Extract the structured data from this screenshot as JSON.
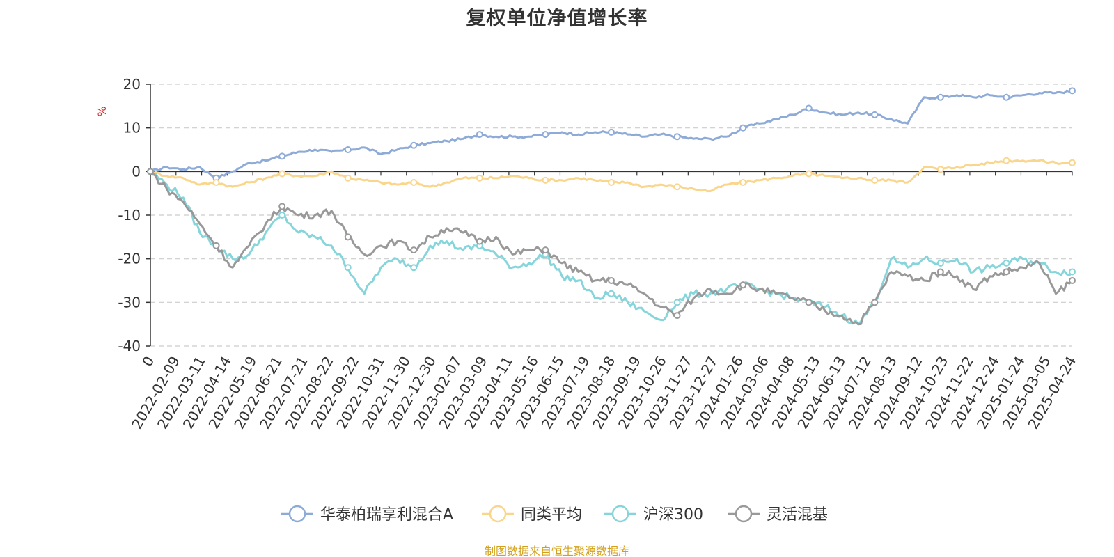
{
  "chart_data": {
    "type": "line",
    "title": "复权单位净值增长率",
    "ylabel": "%",
    "xlabel": "",
    "ylim": [
      -40,
      20
    ],
    "yticks": [
      20,
      10,
      0,
      -10,
      -20,
      -30,
      -40
    ],
    "grid": true,
    "legend_position": "bottom-center",
    "x_tick_labels": [
      "0",
      "2022-02-09",
      "2022-03-11",
      "2022-04-14",
      "2022-05-19",
      "2022-06-21",
      "2022-07-21",
      "2022-08-22",
      "2022-09-22",
      "2022-10-31",
      "2022-11-30",
      "2022-12-30",
      "2023-02-07",
      "2023-03-09",
      "2023-04-11",
      "2023-05-16",
      "2023-06-15",
      "2023-07-19",
      "2023-08-18",
      "2023-09-19",
      "2023-10-26",
      "2023-11-27",
      "2023-12-27",
      "2024-01-26",
      "2024-03-06",
      "2024-04-08",
      "2024-05-13",
      "2024-06-13",
      "2024-07-12",
      "2024-08-13",
      "2024-09-12",
      "2024-10-23",
      "2024-11-22",
      "2024-12-24",
      "2025-01-24",
      "2025-03-05",
      "2025-04-24"
    ],
    "series": [
      {
        "name": "华泰柏瑞享利混合A",
        "color": "#8eabd8",
        "values": [
          0,
          1,
          0.5,
          1,
          -1.5,
          0,
          2,
          2.5,
          3.5,
          4.5,
          5,
          4.5,
          5,
          5.5,
          4,
          5,
          6,
          6.5,
          7,
          7.5,
          8.5,
          8,
          8,
          8,
          8.5,
          9,
          8.5,
          9,
          9,
          8.5,
          8,
          8.5,
          8,
          7.5,
          7.5,
          8,
          10,
          11,
          12,
          13,
          14.5,
          13.5,
          13,
          13.5,
          13,
          12,
          11,
          17,
          17,
          17.5,
          17,
          17.5,
          17,
          17.5,
          18,
          18,
          18.5
        ]
      },
      {
        "name": "同类平均",
        "color": "#fad58c",
        "values": [
          0,
          -1,
          -1.5,
          -3,
          -2.5,
          -3.5,
          -2.5,
          -1.5,
          -0.5,
          -1,
          -1,
          0,
          -1.5,
          -2,
          -2.5,
          -3,
          -2.5,
          -3.5,
          -2.5,
          -1.5,
          -1.5,
          -1.5,
          -1,
          -1.5,
          -2,
          -2,
          -1.5,
          -2,
          -2.5,
          -2.5,
          -3.5,
          -3,
          -3.5,
          -4,
          -4.5,
          -3,
          -2.5,
          -2,
          -1.5,
          -1,
          -0.5,
          -1,
          -1.5,
          -1.5,
          -2,
          -2,
          -2.5,
          1,
          0.5,
          1,
          1.5,
          2,
          2.5,
          2.5,
          2.5,
          2,
          2
        ]
      },
      {
        "name": "沪深300",
        "color": "#85d5db",
        "values": [
          0,
          -3,
          -6,
          -14,
          -17,
          -20,
          -19,
          -14,
          -10,
          -14,
          -15,
          -17,
          -22,
          -28,
          -22,
          -20,
          -22,
          -17,
          -16,
          -18,
          -17,
          -19,
          -22,
          -21,
          -19,
          -24,
          -25,
          -29,
          -28,
          -30,
          -32,
          -34,
          -30,
          -28,
          -28,
          -27,
          -26,
          -27,
          -28,
          -29,
          -30,
          -31,
          -33,
          -35,
          -30,
          -20,
          -22,
          -20,
          -21,
          -20,
          -23,
          -22,
          -21,
          -20,
          -21,
          -23,
          -23
        ]
      },
      {
        "name": "灵活混基",
        "color": "#999999",
        "values": [
          0,
          -4,
          -7,
          -12,
          -17,
          -22,
          -17,
          -12,
          -8,
          -10,
          -10,
          -9,
          -15,
          -19,
          -17,
          -16,
          -18,
          -15,
          -13,
          -14,
          -16,
          -15,
          -19,
          -18,
          -18,
          -21,
          -23,
          -25,
          -25,
          -26,
          -28,
          -31,
          -33,
          -29,
          -27,
          -28,
          -26,
          -27,
          -28,
          -29,
          -30,
          -32,
          -33,
          -35,
          -30,
          -23,
          -24,
          -25,
          -23,
          -24,
          -27,
          -24,
          -23,
          -22,
          -21,
          -28,
          -25
        ]
      }
    ]
  },
  "footer": {
    "source": "制图数据来自恒生聚源数据库"
  }
}
